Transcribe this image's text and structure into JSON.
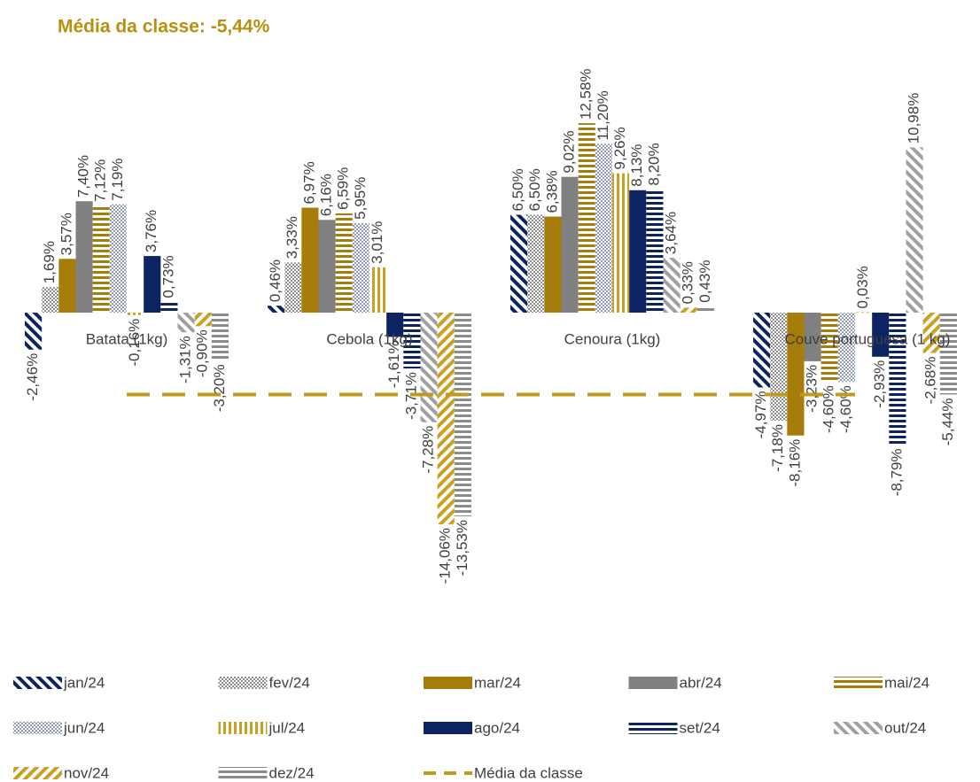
{
  "chart_data": {
    "type": "bar",
    "title": "Média da classe: -5,44%",
    "categories": [
      "Batata (1kg)",
      "Cebola (1kg)",
      "Cenoura (1kg)",
      "Couve portuguesa (1 kg)"
    ],
    "ylim": [
      -15,
      13
    ],
    "series": [
      {
        "name": "jan/24",
        "color": "#0d2463",
        "pattern": "diagonal-down",
        "values": [
          -2.46,
          0.46,
          6.5,
          -4.97
        ],
        "value_labels": [
          "-2,46%",
          "0,46%",
          "6,50%",
          "-4,97%"
        ]
      },
      {
        "name": "fev/24",
        "color": "#8c8c8c",
        "pattern": "checker",
        "values": [
          1.69,
          3.33,
          6.5,
          -7.18
        ],
        "value_labels": [
          "1,69%",
          "3,33%",
          "6,50%",
          "-7,18%"
        ]
      },
      {
        "name": "mar/24",
        "color": "#a67c0a",
        "pattern": "solid",
        "values": [
          3.57,
          6.97,
          6.38,
          -8.16
        ],
        "value_labels": [
          "3,57%",
          "6,97%",
          "6,38%",
          "-8,16%"
        ]
      },
      {
        "name": "abr/24",
        "color": "#808080",
        "pattern": "solid",
        "values": [
          7.4,
          6.16,
          9.02,
          -3.23
        ],
        "value_labels": [
          "7,40%",
          "6,16%",
          "9,02%",
          "-3,23%"
        ]
      },
      {
        "name": "mai/24",
        "color": "#a67c0a",
        "pattern": "horizontal",
        "values": [
          7.12,
          6.59,
          12.58,
          -4.6
        ],
        "value_labels": [
          "7,12%",
          "6,59%",
          "12,58%",
          "-4,60%"
        ]
      },
      {
        "name": "jun/24",
        "color": "#0d2463",
        "pattern": "dots",
        "values": [
          7.19,
          5.95,
          11.2,
          -4.6
        ],
        "value_labels": [
          "7,19%",
          "5,95%",
          "11,20%",
          "-4,60%"
        ]
      },
      {
        "name": "jul/24",
        "color": "#c9a020",
        "pattern": "vertical",
        "values": [
          -0.16,
          3.01,
          9.26,
          0.03
        ],
        "value_labels": [
          "-0,16%",
          "3,01%",
          "9,26%",
          "0,03%"
        ]
      },
      {
        "name": "ago/24",
        "color": "#0d2463",
        "pattern": "solid",
        "values": [
          3.76,
          -1.61,
          8.13,
          -2.93
        ],
        "value_labels": [
          "3,76%",
          "-1,61%",
          "8,13%",
          "-2,93%"
        ]
      },
      {
        "name": "set/24",
        "color": "#0d2463",
        "pattern": "horizontal",
        "values": [
          0.73,
          -3.71,
          8.2,
          -8.79
        ],
        "value_labels": [
          "0,73%",
          "-3,71%",
          "8,20%",
          "-8,79%"
        ]
      },
      {
        "name": "out/24",
        "color": "#a0a0a0",
        "pattern": "diagonal-down",
        "values": [
          -1.31,
          -7.28,
          3.64,
          10.98
        ],
        "value_labels": [
          "-1,31%",
          "-7,28%",
          "3,64%",
          "10,98%"
        ]
      },
      {
        "name": "nov/24",
        "color": "#c9a020",
        "pattern": "diagonal-up",
        "values": [
          -0.9,
          -14.06,
          0.33,
          -2.68
        ],
        "value_labels": [
          "-0,90%",
          "-14,06%",
          "0,33%",
          "-2,68%"
        ]
      },
      {
        "name": "dez/24",
        "color": "#8c8c8c",
        "pattern": "horizontal",
        "values": [
          -3.2,
          -13.53,
          0.43,
          -5.44
        ],
        "value_labels": [
          "-3,20%",
          "-13,53%",
          "0,43%",
          "-5,44%"
        ]
      },
      {
        "name": "Média da classe",
        "type": "line",
        "color": "#c09a1e",
        "dashed": true,
        "values": [
          -5.44,
          -5.44,
          -5.44,
          -5.44
        ]
      }
    ]
  }
}
